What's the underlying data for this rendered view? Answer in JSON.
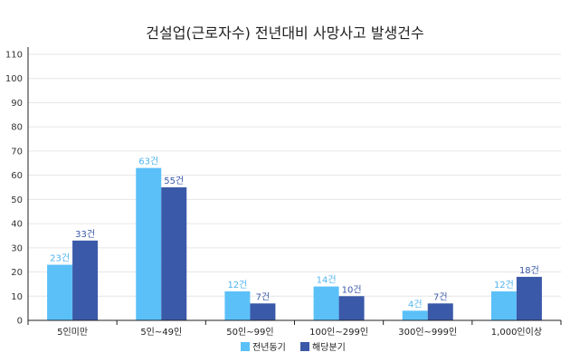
{
  "chart_data": {
    "type": "bar",
    "title": "건설업(근로자수) 전년대비 사망사고 발생건수",
    "categories": [
      "5인미만",
      "5인~49인",
      "50인~99인",
      "100인~299인",
      "300인~999인",
      "1,000인이상"
    ],
    "series": [
      {
        "name": "전년동기",
        "values": [
          23,
          63,
          12,
          14,
          4,
          12
        ],
        "labels": [
          "23건",
          "63건",
          "12건",
          "14건",
          "4건",
          "12건"
        ],
        "color": "#5bc0f8",
        "label_color": "#4fb3ef"
      },
      {
        "name": "해당분기",
        "values": [
          33,
          55,
          7,
          10,
          7,
          18
        ],
        "labels": [
          "33건",
          "55건",
          "7건",
          "10건",
          "7건",
          "18건"
        ],
        "color": "#3a59a8",
        "label_color": "#3a59a8"
      }
    ],
    "ylim": [
      0,
      110
    ],
    "yticks": [
      "0",
      "10",
      "20",
      "30",
      "40",
      "50",
      "60",
      "70",
      "80",
      "90",
      "100",
      "110"
    ],
    "grid": true,
    "legend": "bottom-center"
  }
}
